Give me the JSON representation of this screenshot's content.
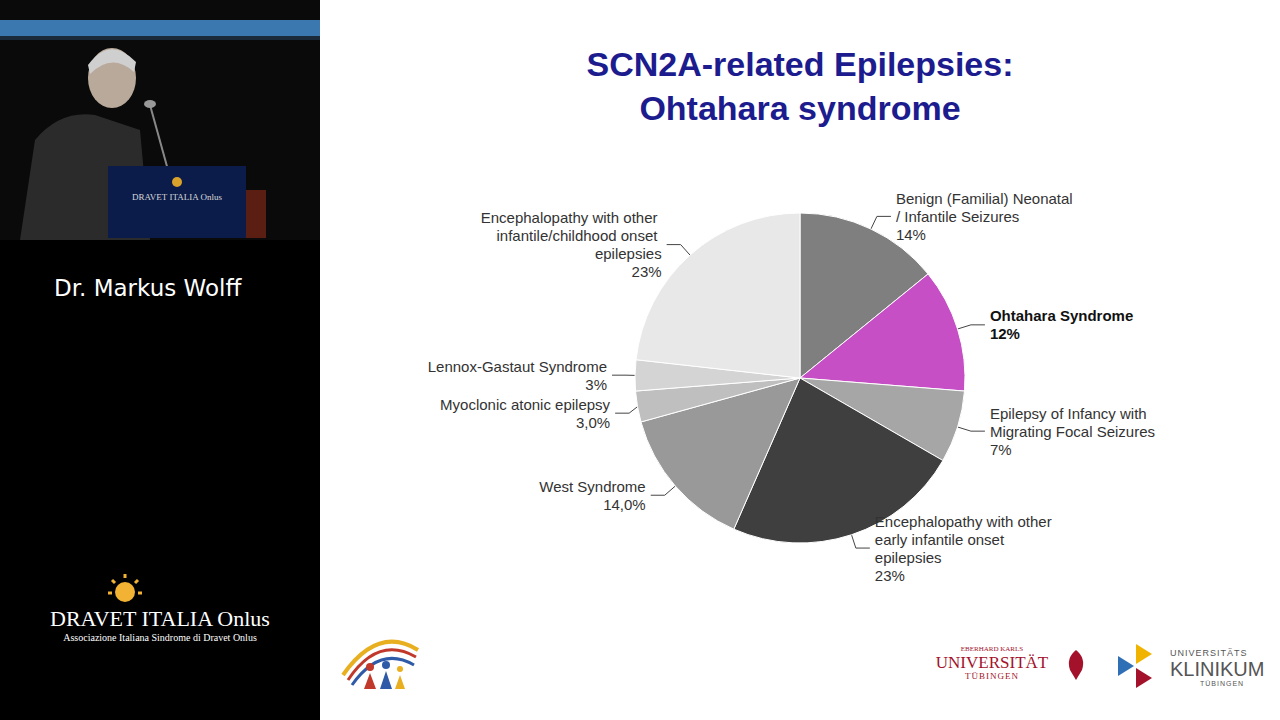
{
  "chart_data": {
    "type": "pie",
    "title": "SCN2A-related Epilepsies: Ohtahara syndrome",
    "categories": [
      "Benign (Familial) Neonatal / Infantile Seizures",
      "Ohtahara Syndrome",
      "Epilepsy of Infancy with Migrating Focal Seizures",
      "Encephalopathy with other early infantile onset epilepsies",
      "West Syndrome",
      "Myoclonic atonic epilepsy",
      "Lennox-Gastaut Syndrome",
      "Encephalopathy with other infantile/childhood onset epilepsies"
    ],
    "values": [
      14,
      12,
      7,
      23,
      14.0,
      3.0,
      3,
      23
    ],
    "value_labels": [
      "14%",
      "12%",
      "7%",
      "23%",
      "14,0%",
      "3,0%",
      "3%",
      "23%"
    ],
    "colors": [
      "#7f7f7f",
      "#c64fc6",
      "#a6a6a6",
      "#3f3f3f",
      "#999999",
      "#bfbfbf",
      "#d4d4d4",
      "#e8e8e8"
    ],
    "data_labels": true
  },
  "page": {
    "speaker": "Dr. Markus Wolff",
    "podium": "DRAVET ITALIA Onlus",
    "organization": "DRAVET ITALIA Onlus",
    "organization_subtitle": "Associazione Italiana Sindrome di Dravet Onlus",
    "university": [
      "EBERHARD KARLS",
      "UNIVERSITÄT",
      "TÜBINGEN"
    ],
    "clinic": [
      "UNIVERSITÄTS",
      "KLINIKUM",
      "TÜBINGEN"
    ]
  }
}
